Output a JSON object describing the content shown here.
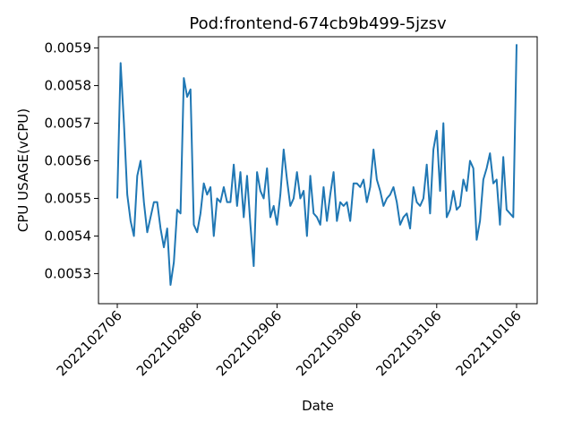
{
  "chart_data": {
    "type": "line",
    "title": "Pod:frontend-674cb9b499-5jzsv",
    "xlabel": "Date",
    "ylabel": "CPU USAGE(vCPU)",
    "grid": false,
    "legend": "none",
    "xlim": [
      2022102706,
      2022110106
    ],
    "ylim": [
      0.00522,
      0.00593
    ],
    "x_ticks": [
      2022102706,
      2022102806,
      2022102906,
      2022103006,
      2022103106,
      2022110106
    ],
    "x_tick_labels": [
      "2022102706",
      "2022102806",
      "2022102906",
      "2022103006",
      "2022103106",
      "2022110106"
    ],
    "y_ticks": [
      0.0053,
      0.0054,
      0.0055,
      0.0056,
      0.0057,
      0.0058,
      0.0059
    ],
    "y_tick_labels": [
      "0.0053",
      "0.0054",
      "0.0055",
      "0.0056",
      "0.0057",
      "0.0058",
      "0.0059"
    ],
    "series": [
      {
        "color": "#1f77b4",
        "values": [
          0.0055,
          0.00586,
          0.0057,
          0.00551,
          0.00544,
          0.0054,
          0.00556,
          0.0056,
          0.00549,
          0.00541,
          0.00545,
          0.00549,
          0.00549,
          0.00542,
          0.00537,
          0.00542,
          0.00527,
          0.00533,
          0.00547,
          0.00546,
          0.00582,
          0.00577,
          0.00579,
          0.00543,
          0.00541,
          0.00546,
          0.00554,
          0.00551,
          0.00553,
          0.0054,
          0.0055,
          0.00549,
          0.00553,
          0.00549,
          0.00549,
          0.00559,
          0.00548,
          0.00557,
          0.00545,
          0.00556,
          0.00543,
          0.00532,
          0.00557,
          0.00552,
          0.0055,
          0.00558,
          0.00545,
          0.00548,
          0.00543,
          0.00551,
          0.00563,
          0.00555,
          0.00548,
          0.0055,
          0.00557,
          0.0055,
          0.00552,
          0.0054,
          0.00556,
          0.00546,
          0.00545,
          0.00543,
          0.00553,
          0.00544,
          0.00551,
          0.00557,
          0.00544,
          0.00549,
          0.00548,
          0.00549,
          0.00544,
          0.00554,
          0.00554,
          0.00553,
          0.00555,
          0.00549,
          0.00553,
          0.00563,
          0.00555,
          0.00552,
          0.00548,
          0.0055,
          0.00551,
          0.00553,
          0.00549,
          0.00543,
          0.00545,
          0.00546,
          0.00542,
          0.00553,
          0.00549,
          0.00548,
          0.0055,
          0.00559,
          0.00546,
          0.00563,
          0.00568,
          0.00552,
          0.0057,
          0.00545,
          0.00547,
          0.00552,
          0.00547,
          0.00548,
          0.00555,
          0.00552,
          0.0056,
          0.00558,
          0.00539,
          0.00544,
          0.00555,
          0.00558,
          0.00562,
          0.00554,
          0.00555,
          0.00543,
          0.00561,
          0.00547,
          0.00546,
          0.00545,
          0.00591
        ]
      }
    ]
  }
}
